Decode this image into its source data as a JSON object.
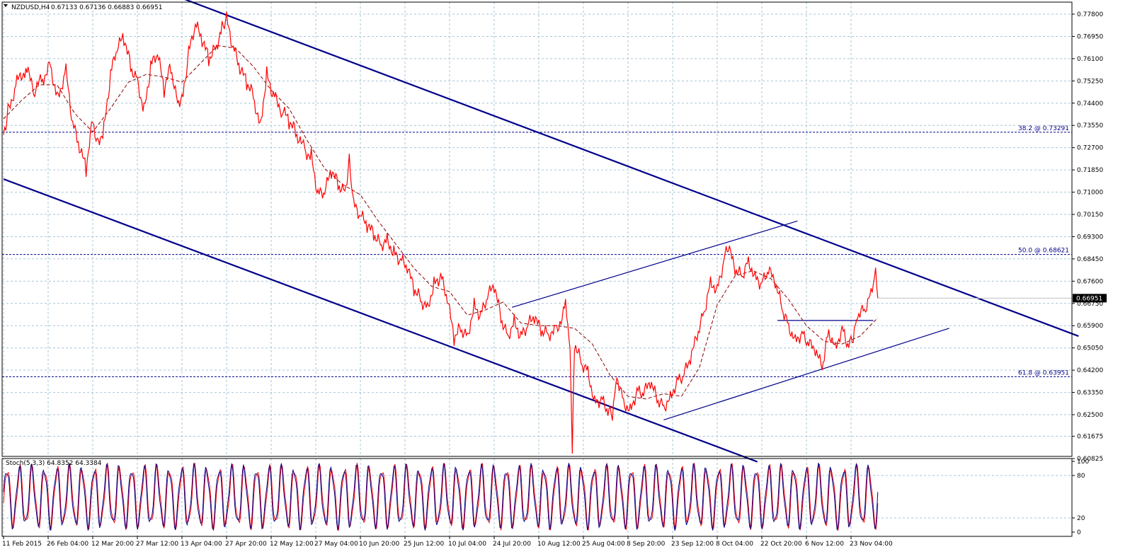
{
  "chart_data": [
    {
      "type": "line",
      "symbol_label": "NZDUSD,H4",
      "ohlc_label": "0.67133 0.67136 0.66883 0.66951",
      "current_price_label": "0.66951",
      "current_price": 0.66951,
      "y_ticks": [
        0.60825,
        0.61675,
        0.625,
        0.6335,
        0.642,
        0.6505,
        0.659,
        0.6675,
        0.676,
        0.6845,
        0.693,
        0.7015,
        0.71,
        0.7185,
        0.727,
        0.7355,
        0.744,
        0.7525,
        0.761,
        0.7695,
        0.778
      ],
      "y_tick_labels": [
        "0.60825",
        "0.61675",
        "0.62500",
        "0.63350",
        "0.64200",
        "0.65050",
        "0.65900",
        "0.66750",
        "0.67600",
        "0.68450",
        "0.69300",
        "0.70150",
        "0.71000",
        "0.71850",
        "0.72700",
        "0.73550",
        "0.74400",
        "0.75250",
        "0.76100",
        "0.76950",
        "0.77800"
      ],
      "ylim": [
        0.607,
        0.7805
      ],
      "x_tick_labels": [
        "11 Feb 2015",
        "26 Feb 04:00",
        "12 Mar 20:00",
        "27 Mar 12:00",
        "13 Apr 04:00",
        "27 Apr 20:00",
        "12 May 12:00",
        "27 May 04:00",
        "10 Jun 20:00",
        "25 Jun 12:00",
        "10 Jul 04:00",
        "24 Jul 20:00",
        "10 Aug 12:00",
        "25 Aug 04:00",
        "8 Sep 20:00",
        "23 Sep 12:00",
        "8 Oct 04:00",
        "22 Oct 20:00",
        "6 Nov 12:00",
        "23 Nov 04:00"
      ],
      "x_tick_index": [
        0,
        1,
        2,
        3,
        4,
        5,
        6,
        7,
        8,
        9,
        10,
        11,
        12,
        13,
        14,
        15,
        16,
        17,
        18,
        19
      ],
      "xlim": [
        0,
        24.1
      ],
      "grid": true,
      "price_path": [
        [
          0,
          0.732
        ],
        [
          0.1,
          0.741
        ],
        [
          0.3,
          0.752
        ],
        [
          0.5,
          0.757
        ],
        [
          0.7,
          0.749
        ],
        [
          0.9,
          0.754
        ],
        [
          1.05,
          0.759
        ],
        [
          1.2,
          0.746
        ],
        [
          1.4,
          0.756
        ],
        [
          1.55,
          0.736
        ],
        [
          1.7,
          0.727
        ],
        [
          1.85,
          0.719
        ],
        [
          2.0,
          0.738
        ],
        [
          2.1,
          0.729
        ],
        [
          2.25,
          0.734
        ],
        [
          2.4,
          0.755
        ],
        [
          2.55,
          0.765
        ],
        [
          2.7,
          0.769
        ],
        [
          2.85,
          0.758
        ],
        [
          3.0,
          0.753
        ],
        [
          3.15,
          0.741
        ],
        [
          3.3,
          0.758
        ],
        [
          3.45,
          0.763
        ],
        [
          3.6,
          0.749
        ],
        [
          3.75,
          0.758
        ],
        [
          3.9,
          0.744
        ],
        [
          4.05,
          0.749
        ],
        [
          4.15,
          0.763
        ],
        [
          4.3,
          0.774
        ],
        [
          4.45,
          0.768
        ],
        [
          4.6,
          0.761
        ],
        [
          4.75,
          0.765
        ],
        [
          4.9,
          0.773
        ],
        [
          5.0,
          0.776
        ],
        [
          5.15,
          0.765
        ],
        [
          5.3,
          0.757
        ],
        [
          5.45,
          0.752
        ],
        [
          5.6,
          0.747
        ],
        [
          5.75,
          0.735
        ],
        [
          5.9,
          0.755
        ],
        [
          6.05,
          0.747
        ],
        [
          6.25,
          0.741
        ],
        [
          6.4,
          0.737
        ],
        [
          6.55,
          0.733
        ],
        [
          6.75,
          0.726
        ],
        [
          6.9,
          0.724
        ],
        [
          7.05,
          0.709
        ],
        [
          7.2,
          0.71
        ],
        [
          7.35,
          0.718
        ],
        [
          7.5,
          0.713
        ],
        [
          7.65,
          0.71
        ],
        [
          7.75,
          0.722
        ],
        [
          7.85,
          0.705
        ],
        [
          8.0,
          0.701
        ],
        [
          8.15,
          0.697
        ],
        [
          8.3,
          0.694
        ],
        [
          8.45,
          0.69
        ],
        [
          8.6,
          0.692
        ],
        [
          8.75,
          0.687
        ],
        [
          8.9,
          0.684
        ],
        [
          9.05,
          0.681
        ],
        [
          9.2,
          0.673
        ],
        [
          9.35,
          0.669
        ],
        [
          9.5,
          0.666
        ],
        [
          9.65,
          0.675
        ],
        [
          9.8,
          0.678
        ],
        [
          9.95,
          0.669
        ],
        [
          10.1,
          0.654
        ],
        [
          10.25,
          0.658
        ],
        [
          10.4,
          0.655
        ],
        [
          10.55,
          0.667
        ],
        [
          10.7,
          0.663
        ],
        [
          10.85,
          0.67
        ],
        [
          11.0,
          0.674
        ],
        [
          11.15,
          0.662
        ],
        [
          11.3,
          0.655
        ],
        [
          11.45,
          0.661
        ],
        [
          11.6,
          0.655
        ],
        [
          11.75,
          0.659
        ],
        [
          11.9,
          0.662
        ],
        [
          12.05,
          0.657
        ],
        [
          12.2,
          0.656
        ],
        [
          12.4,
          0.657
        ],
        [
          12.6,
          0.667
        ],
        [
          12.7,
          0.65
        ],
        [
          12.75,
          0.612
        ],
        [
          12.8,
          0.652
        ],
        [
          12.95,
          0.645
        ],
        [
          13.1,
          0.642
        ],
        [
          13.25,
          0.63
        ],
        [
          13.4,
          0.631
        ],
        [
          13.55,
          0.626
        ],
        [
          13.65,
          0.625
        ],
        [
          13.75,
          0.64
        ],
        [
          13.9,
          0.63
        ],
        [
          14.05,
          0.627
        ],
        [
          14.2,
          0.634
        ],
        [
          14.35,
          0.633
        ],
        [
          14.5,
          0.637
        ],
        [
          14.65,
          0.631
        ],
        [
          14.8,
          0.628
        ],
        [
          14.95,
          0.632
        ],
        [
          15.1,
          0.638
        ],
        [
          15.25,
          0.64
        ],
        [
          15.4,
          0.646
        ],
        [
          15.55,
          0.655
        ],
        [
          15.7,
          0.664
        ],
        [
          15.85,
          0.676
        ],
        [
          16.0,
          0.673
        ],
        [
          16.15,
          0.684
        ],
        [
          16.25,
          0.689
        ],
        [
          16.4,
          0.68
        ],
        [
          16.55,
          0.678
        ],
        [
          16.7,
          0.684
        ],
        [
          16.85,
          0.678
        ],
        [
          17.0,
          0.675
        ],
        [
          17.15,
          0.68
        ],
        [
          17.3,
          0.675
        ],
        [
          17.45,
          0.666
        ],
        [
          17.6,
          0.659
        ],
        [
          17.75,
          0.654
        ],
        [
          17.9,
          0.656
        ],
        [
          18.05,
          0.652
        ],
        [
          18.2,
          0.649
        ],
        [
          18.35,
          0.643
        ],
        [
          18.5,
          0.657
        ],
        [
          18.65,
          0.651
        ],
        [
          18.8,
          0.658
        ],
        [
          18.95,
          0.651
        ],
        [
          19.05,
          0.654
        ],
        [
          19.15,
          0.663
        ],
        [
          19.3,
          0.665
        ],
        [
          19.45,
          0.672
        ],
        [
          19.55,
          0.68
        ],
        [
          19.6,
          0.6695
        ]
      ],
      "ma_path": [
        [
          0,
          0.738
        ],
        [
          0.4,
          0.745
        ],
        [
          0.8,
          0.751
        ],
        [
          1.2,
          0.751
        ],
        [
          1.6,
          0.74
        ],
        [
          2.0,
          0.733
        ],
        [
          2.4,
          0.742
        ],
        [
          2.8,
          0.752
        ],
        [
          3.2,
          0.755
        ],
        [
          3.6,
          0.754
        ],
        [
          4.0,
          0.752
        ],
        [
          4.4,
          0.759
        ],
        [
          4.8,
          0.766
        ],
        [
          5.2,
          0.765
        ],
        [
          5.6,
          0.758
        ],
        [
          6.0,
          0.749
        ],
        [
          6.4,
          0.742
        ],
        [
          6.8,
          0.73
        ],
        [
          7.2,
          0.719
        ],
        [
          7.6,
          0.713
        ],
        [
          8.0,
          0.709
        ],
        [
          8.4,
          0.699
        ],
        [
          8.8,
          0.69
        ],
        [
          9.2,
          0.681
        ],
        [
          9.6,
          0.674
        ],
        [
          10.0,
          0.672
        ],
        [
          10.4,
          0.663
        ],
        [
          10.8,
          0.665
        ],
        [
          11.2,
          0.668
        ],
        [
          11.6,
          0.66
        ],
        [
          12.0,
          0.659
        ],
        [
          12.4,
          0.659
        ],
        [
          12.8,
          0.658
        ],
        [
          13.2,
          0.652
        ],
        [
          13.6,
          0.64
        ],
        [
          14.0,
          0.632
        ],
        [
          14.4,
          0.631
        ],
        [
          14.8,
          0.633
        ],
        [
          15.2,
          0.632
        ],
        [
          15.6,
          0.643
        ],
        [
          16.0,
          0.667
        ],
        [
          16.4,
          0.678
        ],
        [
          16.8,
          0.68
        ],
        [
          17.2,
          0.677
        ],
        [
          17.6,
          0.669
        ],
        [
          18.0,
          0.659
        ],
        [
          18.4,
          0.653
        ],
        [
          18.8,
          0.652
        ],
        [
          19.2,
          0.655
        ],
        [
          19.6,
          0.662
        ]
      ],
      "lines": [
        {
          "name": "upper-channel",
          "color": "#00008b",
          "from": [
            3.7,
            0.786
          ],
          "to": [
            24.1,
            0.655
          ]
        },
        {
          "name": "lower-channel",
          "color": "#00008b",
          "from": [
            0,
            0.715
          ],
          "to": [
            16.9,
            0.607
          ]
        },
        {
          "name": "wedge-upper",
          "color": "#00008b",
          "from": [
            11.4,
            0.666
          ],
          "to": [
            17.8,
            0.699
          ]
        },
        {
          "name": "wedge-lower",
          "color": "#00008b",
          "from": [
            14.8,
            0.623
          ],
          "to": [
            21.2,
            0.658
          ]
        },
        {
          "name": "neckline",
          "color": "#00008b",
          "from": [
            17.35,
            0.661
          ],
          "to": [
            19.5,
            0.661
          ]
        }
      ],
      "fib_levels": [
        {
          "label": "38.2 @ 0.73291",
          "value": 0.73291
        },
        {
          "label": "50.0 @ 0.68621",
          "value": 0.68621
        },
        {
          "label": "61.8 @ 0.63951",
          "value": 0.63951
        }
      ],
      "colors": {
        "candles": "#ff0000",
        "ma": "#8b0000",
        "trendline": "#00008b",
        "grid": "#a6c6d6",
        "stoch_main": "#00008b",
        "stoch_signal": "#ff0000"
      }
    },
    {
      "type": "line",
      "label": "Stoch(5,3,3) 64.8352 64.3384",
      "ylim": [
        0,
        100
      ],
      "y_ticks": [
        0,
        20,
        80,
        100
      ],
      "y_tick_labels": [
        "0",
        "20",
        "80",
        "100"
      ],
      "levels": [
        20,
        80
      ],
      "cycles": 70,
      "series_note": "oscillator cycling between overbought and oversold"
    }
  ]
}
